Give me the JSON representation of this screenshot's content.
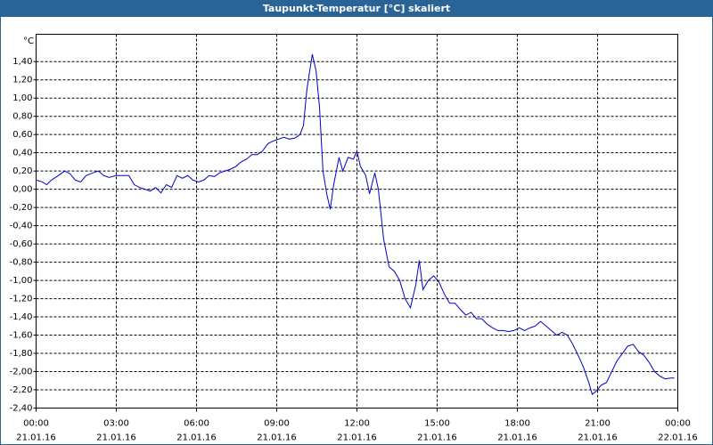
{
  "chart_data": {
    "type": "line",
    "title": "Taupunkt-Temperatur [°C] skaliert",
    "y_label": "°C",
    "color": "#0000c8",
    "grid": true,
    "xlim": [
      0,
      24
    ],
    "ylim": [
      -2.4,
      1.7
    ],
    "xticks": [
      {
        "value": 0,
        "label": "00:00",
        "date": "21.01.16"
      },
      {
        "value": 3,
        "label": "03:00",
        "date": "21.01.16"
      },
      {
        "value": 6,
        "label": "06:00",
        "date": "21.01.16"
      },
      {
        "value": 9,
        "label": "09:00",
        "date": "21.01.16"
      },
      {
        "value": 12,
        "label": "12:00",
        "date": "21.01.16"
      },
      {
        "value": 15,
        "label": "15:00",
        "date": "21.01.16"
      },
      {
        "value": 18,
        "label": "18:00",
        "date": "21.01.16"
      },
      {
        "value": 21,
        "label": "21:00",
        "date": "21.01.16"
      },
      {
        "value": 24,
        "label": "00:00",
        "date": "22.01.16"
      }
    ],
    "yticks": [
      {
        "value": -2.4,
        "label": "-2,40"
      },
      {
        "value": -2.2,
        "label": "-2,20"
      },
      {
        "value": -2.0,
        "label": "-2,00"
      },
      {
        "value": -1.8,
        "label": "-1,80"
      },
      {
        "value": -1.6,
        "label": "-1,60"
      },
      {
        "value": -1.4,
        "label": "-1,40"
      },
      {
        "value": -1.2,
        "label": "-1,20"
      },
      {
        "value": -1.0,
        "label": "-1,00"
      },
      {
        "value": -0.8,
        "label": "-0,80"
      },
      {
        "value": -0.6,
        "label": "-0,60"
      },
      {
        "value": -0.4,
        "label": "-0,40"
      },
      {
        "value": -0.2,
        "label": "-0,20"
      },
      {
        "value": 0,
        "label": "0,00"
      },
      {
        "value": 0.2,
        "label": "0,20"
      },
      {
        "value": 0.4,
        "label": "0,40"
      },
      {
        "value": 0.6,
        "label": "0,60"
      },
      {
        "value": 0.8,
        "label": "0,80"
      },
      {
        "value": 1.0,
        "label": "1,00"
      },
      {
        "value": 1.2,
        "label": "1,20"
      },
      {
        "value": 1.4,
        "label": "1,40"
      }
    ],
    "x": [
      0,
      0.23,
      0.4,
      0.57,
      0.83,
      1.07,
      1.27,
      1.47,
      1.67,
      1.87,
      2.13,
      2.33,
      2.53,
      2.73,
      3,
      3.27,
      3.47,
      3.67,
      3.87,
      4.07,
      4.27,
      4.47,
      4.67,
      4.87,
      5.07,
      5.27,
      5.47,
      5.67,
      5.87,
      6.07,
      6.27,
      6.47,
      6.67,
      6.87,
      7.07,
      7.27,
      7.47,
      7.67,
      7.87,
      8.07,
      8.27,
      8.47,
      8.67,
      8.87,
      9.07,
      9.27,
      9.47,
      9.67,
      9.87,
      10,
      10.13,
      10.33,
      10.47,
      10.6,
      10.73,
      10.87,
      11,
      11.13,
      11.33,
      11.47,
      11.67,
      11.87,
      12,
      12.13,
      12.33,
      12.47,
      12.67,
      12.8,
      13,
      13.2,
      13.4,
      13.6,
      13.8,
      14,
      14.2,
      14.33,
      14.47,
      14.67,
      14.87,
      15.07,
      15.27,
      15.47,
      15.67,
      15.87,
      16.07,
      16.27,
      16.47,
      16.67,
      16.87,
      17.07,
      17.27,
      17.47,
      17.67,
      17.87,
      18.07,
      18.27,
      18.47,
      18.67,
      18.87,
      19.07,
      19.27,
      19.47,
      19.67,
      19.87,
      20.07,
      20.27,
      20.47,
      20.67,
      20.8,
      20.93,
      21.13,
      21.33,
      21.53,
      21.73,
      21.93,
      22.13,
      22.33,
      22.53,
      22.73,
      22.93,
      23.13,
      23.33,
      23.53,
      23.73,
      23.87
    ],
    "values": [
      0.1,
      0.08,
      0.05,
      0.1,
      0.15,
      0.2,
      0.17,
      0.1,
      0.08,
      0.15,
      0.18,
      0.2,
      0.15,
      0.13,
      0.15,
      0.15,
      0.15,
      0.05,
      0.02,
      0,
      -0.02,
      0.02,
      -0.04,
      0.05,
      0.02,
      0.15,
      0.12,
      0.15,
      0.1,
      0.08,
      0.1,
      0.15,
      0.14,
      0.18,
      0.2,
      0.22,
      0.25,
      0.3,
      0.33,
      0.38,
      0.38,
      0.42,
      0.5,
      0.53,
      0.55,
      0.57,
      0.55,
      0.56,
      0.6,
      0.7,
      1.1,
      1.48,
      1.3,
      0.9,
      0.2,
      -0.05,
      -0.22,
      0.05,
      0.35,
      0.2,
      0.35,
      0.33,
      0.42,
      0.25,
      0.15,
      -0.05,
      0.18,
      0,
      -0.55,
      -0.85,
      -0.9,
      -1,
      -1.2,
      -1.3,
      -1.05,
      -0.78,
      -1.1,
      -1,
      -0.95,
      -1.02,
      -1.15,
      -1.25,
      -1.25,
      -1.32,
      -1.38,
      -1.35,
      -1.42,
      -1.42,
      -1.48,
      -1.52,
      -1.55,
      -1.55,
      -1.56,
      -1.55,
      -1.52,
      -1.55,
      -1.52,
      -1.5,
      -1.45,
      -1.5,
      -1.55,
      -1.6,
      -1.57,
      -1.6,
      -1.7,
      -1.82,
      -1.95,
      -2.12,
      -2.25,
      -2.22,
      -2.15,
      -2.12,
      -2,
      -1.88,
      -1.8,
      -1.72,
      -1.7,
      -1.78,
      -1.82,
      -1.9,
      -2,
      -2.05,
      -2.08,
      -2.07,
      -2.07
    ]
  }
}
